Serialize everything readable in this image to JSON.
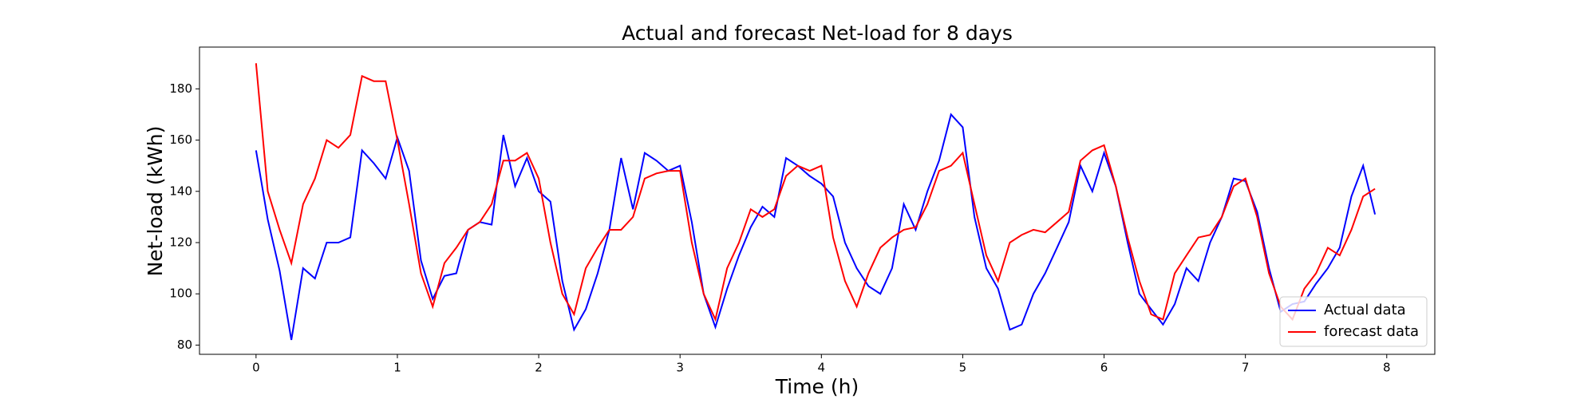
{
  "chart_data": {
    "type": "line",
    "title": "Actual and forecast Net-load for 8 days",
    "xlabel": "Time (h)",
    "ylabel": "Net-load (kWh)",
    "x": [
      0,
      0.083,
      0.167,
      0.25,
      0.333,
      0.417,
      0.5,
      0.583,
      0.667,
      0.75,
      0.833,
      0.917,
      1,
      1.083,
      1.167,
      1.25,
      1.333,
      1.417,
      1.5,
      1.583,
      1.667,
      1.75,
      1.833,
      1.917,
      2,
      2.083,
      2.167,
      2.25,
      2.333,
      2.417,
      2.5,
      2.583,
      2.667,
      2.75,
      2.833,
      2.917,
      3,
      3.083,
      3.167,
      3.25,
      3.333,
      3.417,
      3.5,
      3.583,
      3.667,
      3.75,
      3.833,
      3.917,
      4,
      4.083,
      4.167,
      4.25,
      4.333,
      4.417,
      4.5,
      4.583,
      4.667,
      4.75,
      4.833,
      4.917,
      5,
      5.083,
      5.167,
      5.25,
      5.333,
      5.417,
      5.5,
      5.583,
      5.667,
      5.75,
      5.833,
      5.917,
      6,
      6.083,
      6.167,
      6.25,
      6.333,
      6.417,
      6.5,
      6.583,
      6.667,
      6.75,
      6.833,
      6.917,
      7,
      7.083,
      7.167,
      7.25,
      7.333,
      7.417,
      7.5,
      7.583,
      7.667,
      7.75,
      7.833,
      7.917
    ],
    "series": [
      {
        "name": "Actual data",
        "color": "#0000ff",
        "values": [
          156,
          129,
          109,
          82,
          110,
          106,
          120,
          120,
          122,
          156,
          151,
          145,
          161,
          148,
          113,
          98,
          107,
          108,
          125,
          128,
          127,
          162,
          142,
          153,
          140,
          136,
          105,
          86,
          94,
          108,
          125,
          153,
          133,
          155,
          152,
          148,
          150,
          128,
          100,
          87,
          102,
          115,
          126,
          134,
          130,
          153,
          150,
          146,
          143,
          138,
          120,
          110,
          103,
          100,
          110,
          135,
          125,
          140,
          152,
          170,
          165,
          130,
          110,
          102,
          86,
          88,
          100,
          108,
          118,
          128,
          150,
          140,
          155,
          142,
          120,
          100,
          94,
          88,
          96,
          110,
          105,
          120,
          130,
          145,
          144,
          132,
          110,
          93,
          96,
          97,
          104,
          110,
          118,
          138,
          150,
          131
        ]
      },
      {
        "name": "forecast data",
        "color": "#ff0000",
        "values": [
          190,
          140,
          125,
          112,
          135,
          145,
          160,
          157,
          162,
          185,
          183,
          183,
          160,
          135,
          108,
          95,
          112,
          118,
          125,
          128,
          135,
          152,
          152,
          155,
          145,
          120,
          100,
          92,
          110,
          118,
          125,
          125,
          130,
          145,
          147,
          148,
          148,
          120,
          100,
          90,
          110,
          120,
          133,
          130,
          133,
          146,
          150,
          148,
          150,
          122,
          105,
          95,
          108,
          118,
          122,
          125,
          126,
          135,
          148,
          150,
          155,
          135,
          115,
          105,
          120,
          123,
          125,
          124,
          128,
          132,
          152,
          156,
          158,
          142,
          122,
          105,
          92,
          90,
          108,
          115,
          122,
          123,
          130,
          142,
          145,
          130,
          108,
          95,
          90,
          102,
          108,
          118,
          115,
          125,
          138,
          141
        ]
      }
    ],
    "xlim": [
      -0.4,
      8.34
    ],
    "xticks": [
      0,
      1,
      2,
      3,
      4,
      5,
      6,
      7,
      8
    ],
    "ylim": [
      76.4,
      196.3
    ],
    "yticks": [
      80,
      100,
      120,
      140,
      160,
      180
    ],
    "legend": "lower right"
  }
}
